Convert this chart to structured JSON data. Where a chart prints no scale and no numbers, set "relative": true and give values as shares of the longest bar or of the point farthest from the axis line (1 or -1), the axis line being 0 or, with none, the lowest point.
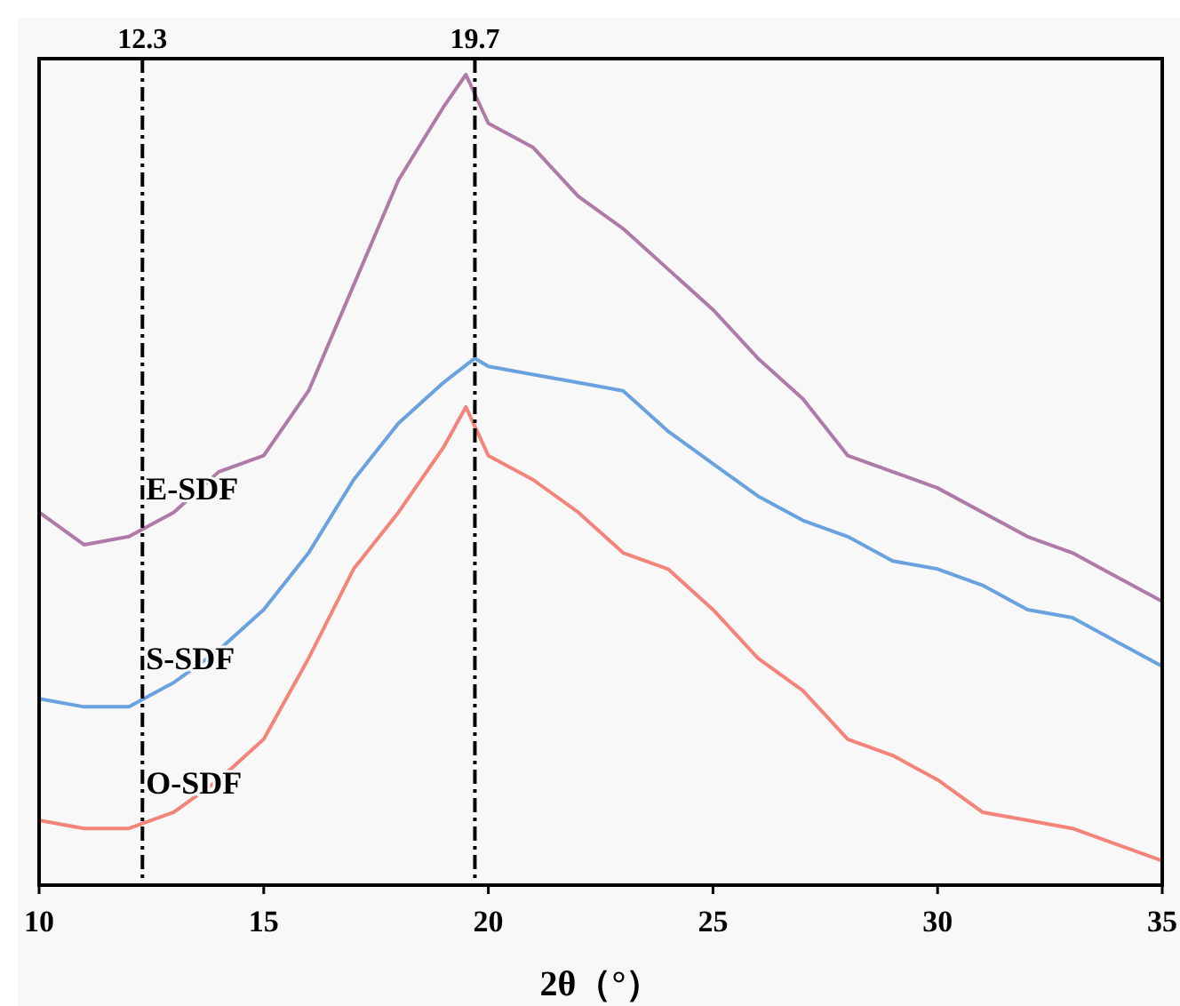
{
  "chart_data": {
    "type": "line",
    "xlabel": "2θ（°）",
    "relative": true,
    "xlim": [
      10,
      35
    ],
    "xticks": [
      10,
      15,
      20,
      25,
      30,
      35
    ],
    "grid": false,
    "line_style": "solid",
    "marker": "none",
    "series": [
      {
        "name": "E-SDF",
        "color": "#b07aa8",
        "x": [
          10,
          11,
          12,
          13,
          14,
          15,
          16,
          17,
          18,
          19,
          19.5,
          20,
          21,
          22,
          23,
          24,
          25,
          26,
          27,
          28,
          29,
          30,
          31,
          32,
          33,
          34,
          35
        ],
        "values": [
          0.46,
          0.42,
          0.43,
          0.46,
          0.51,
          0.53,
          0.61,
          0.74,
          0.87,
          0.96,
          1,
          0.94,
          0.91,
          0.85,
          0.81,
          0.76,
          0.71,
          0.65,
          0.6,
          0.53,
          0.51,
          0.49,
          0.46,
          0.43,
          0.41,
          0.38,
          0.35
        ]
      },
      {
        "name": "S-SDF",
        "color": "#6aa2e0",
        "x": [
          10,
          11,
          12,
          13,
          14,
          15,
          16,
          17,
          18,
          19,
          19.7,
          20,
          21,
          22,
          23,
          24,
          25,
          26,
          27,
          28,
          29,
          30,
          31,
          32,
          33,
          34,
          35
        ],
        "values": [
          0.23,
          0.22,
          0.22,
          0.25,
          0.29,
          0.34,
          0.41,
          0.5,
          0.57,
          0.62,
          0.65,
          0.64,
          0.63,
          0.62,
          0.61,
          0.56,
          0.52,
          0.48,
          0.45,
          0.43,
          0.4,
          0.39,
          0.37,
          0.34,
          0.33,
          0.3,
          0.27
        ]
      },
      {
        "name": "O-SDF",
        "color": "#f4847a",
        "x": [
          10,
          11,
          12,
          13,
          14,
          15,
          16,
          17,
          18,
          19,
          19.5,
          20,
          21,
          22,
          23,
          24,
          25,
          26,
          27,
          28,
          29,
          30,
          31,
          32,
          33,
          34,
          35
        ],
        "values": [
          0.08,
          0.07,
          0.07,
          0.09,
          0.13,
          0.18,
          0.28,
          0.39,
          0.46,
          0.54,
          0.59,
          0.53,
          0.5,
          0.46,
          0.41,
          0.39,
          0.34,
          0.28,
          0.24,
          0.18,
          0.16,
          0.13,
          0.09,
          0.08,
          0.07,
          0.05,
          0.03
        ]
      }
    ],
    "ref_lines": [
      {
        "axis": "x",
        "value": 12.3,
        "label": "12.3",
        "line_style": "dashdot",
        "color": "#000000"
      },
      {
        "axis": "x",
        "value": 19.7,
        "label": "19.7",
        "line_style": "dashdot",
        "color": "#000000"
      }
    ]
  }
}
